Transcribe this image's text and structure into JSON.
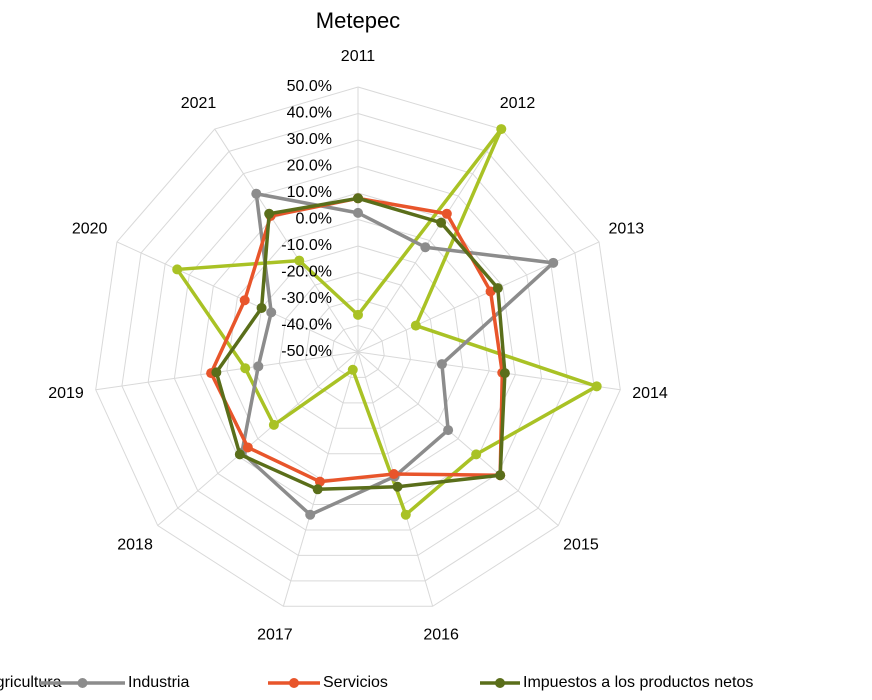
{
  "chart_data": {
    "type": "radar",
    "title": "Metepec",
    "categories": [
      "2011",
      "2012",
      "2013",
      "2014",
      "2015",
      "2016",
      "2017",
      "2018",
      "2019",
      "2020",
      "2021"
    ],
    "series": [
      {
        "name": "Agricultura",
        "color": "#a9c225",
        "values": [
          -36,
          50,
          -26,
          41,
          9,
          14,
          -43,
          -8,
          -7,
          25,
          -9
        ]
      },
      {
        "name": "Industria",
        "color": "#8c8c8c",
        "values": [
          2.5,
          -3,
          31,
          -18,
          -5,
          -1,
          14,
          8,
          -12,
          -14,
          21
        ]
      },
      {
        "name": "Servicios",
        "color": "#e8552b",
        "values": [
          8,
          12,
          5,
          5,
          21,
          -2,
          1,
          5,
          6,
          -3,
          11
        ]
      },
      {
        "name": "Impuestos a los productos netos",
        "color": "#5a6e1a",
        "values": [
          8,
          8,
          8,
          6,
          21,
          3,
          4,
          9,
          4,
          -10,
          12
        ]
      }
    ],
    "ylim": [
      -50,
      50
    ],
    "yticks": [
      {
        "value": -50,
        "label": "-50.0%"
      },
      {
        "value": -40,
        "label": "-40.0%"
      },
      {
        "value": -30,
        "label": "-30.0%"
      },
      {
        "value": -20,
        "label": "-20.0%"
      },
      {
        "value": -10,
        "label": "-10.0%"
      },
      {
        "value": 0,
        "label": "0.0%"
      },
      {
        "value": 10,
        "label": "10.0%"
      },
      {
        "value": 20,
        "label": "20.0%"
      },
      {
        "value": 30,
        "label": "30.0%"
      },
      {
        "value": 40,
        "label": "40.0%"
      },
      {
        "value": 50,
        "label": "50.0%"
      }
    ],
    "grid": true,
    "legend": "bottom"
  }
}
